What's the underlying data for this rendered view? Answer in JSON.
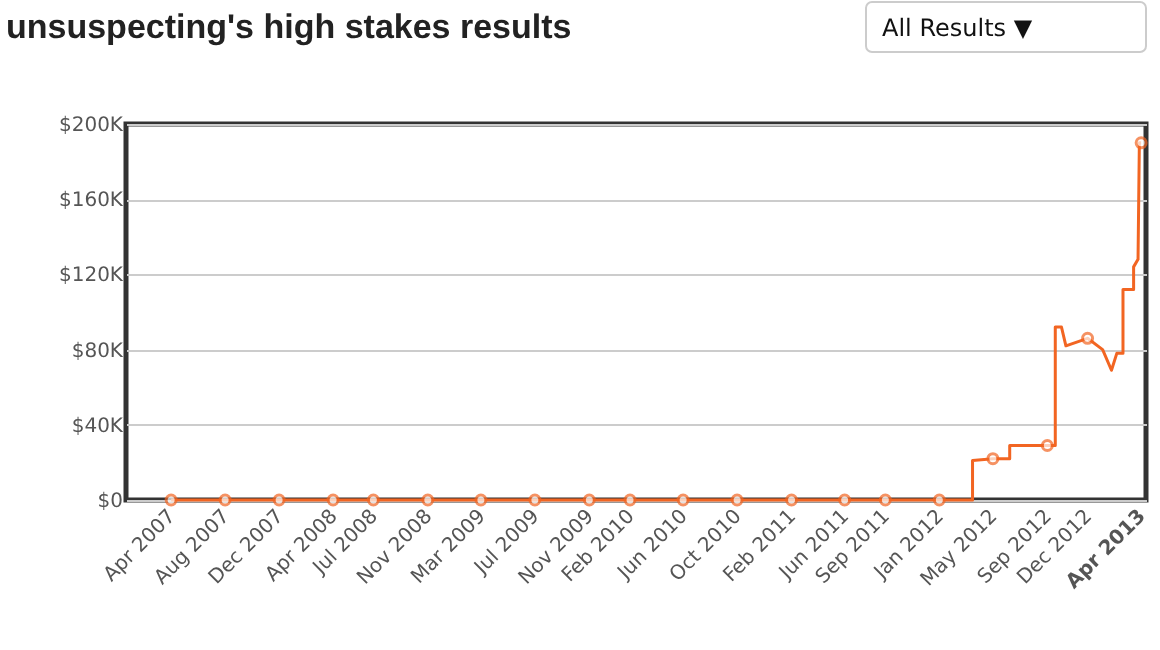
{
  "chart_data": {
    "type": "line",
    "title": "unsuspecting's high stakes results",
    "annotations": [
      "All Results ▼"
    ],
    "xlim": [
      "2006-12-20",
      "2013-04-12"
    ],
    "xticks": [
      {
        "value": "2007-04",
        "label": "Apr 2007"
      },
      {
        "value": "2007-08",
        "label": "Aug 2007"
      },
      {
        "value": "2007-12",
        "label": "Dec 2007"
      },
      {
        "value": "2008-04",
        "label": "Apr 2008"
      },
      {
        "value": "2008-07",
        "label": "Jul 2008"
      },
      {
        "value": "2008-11",
        "label": "Nov 2008"
      },
      {
        "value": "2009-03",
        "label": "Mar 2009"
      },
      {
        "value": "2009-07",
        "label": "Jul 2009"
      },
      {
        "value": "2009-11",
        "label": "Nov 2009"
      },
      {
        "value": "2010-02",
        "label": "Feb 2010"
      },
      {
        "value": "2010-06",
        "label": "Jun 2010"
      },
      {
        "value": "2010-10",
        "label": "Oct 2010"
      },
      {
        "value": "2011-02",
        "label": "Feb 2011"
      },
      {
        "value": "2011-06",
        "label": "Jun 2011"
      },
      {
        "value": "2011-09",
        "label": "Sep 2011"
      },
      {
        "value": "2012-01",
        "label": "Jan 2012"
      },
      {
        "value": "2012-05",
        "label": "May 2012"
      },
      {
        "value": "2012-09",
        "label": "Sep 2012"
      },
      {
        "value": "2012-12",
        "label": "Dec 2012"
      },
      {
        "value": "2013-04",
        "label": "Apr 2013"
      }
    ],
    "ylim": [
      0,
      200000
    ],
    "yticks": [
      {
        "value": 0,
        "label": "$0"
      },
      {
        "value": 40000,
        "label": "$40K"
      },
      {
        "value": 80000,
        "label": "$80K"
      },
      {
        "value": 120000,
        "label": "$120K"
      },
      {
        "value": 160000,
        "label": "$160K"
      },
      {
        "value": 200000,
        "label": "$200K"
      }
    ],
    "grid": "y",
    "line_style": "solid",
    "series": [
      {
        "color": "#f26522",
        "marker": "none",
        "x": [
          "2007-04",
          "2012-03-16",
          "2012-03-16",
          "2012-05",
          "2012-06-08",
          "2012-06-08",
          "2012-09",
          "2012-09-19",
          "2012-09-19",
          "2012-10-03",
          "2012-10-13",
          "2012-12",
          "2013-01-04",
          "2013-01-24",
          "2013-02-05",
          "2013-02-19",
          "2013-02-19",
          "2013-03-15",
          "2013-03-15",
          "2013-03-25",
          "2013-03-28",
          "2013-04"
        ],
        "values": [
          0,
          0,
          21000,
          22000,
          22000,
          29000,
          29000,
          29000,
          92000,
          92000,
          82000,
          86000,
          80000,
          69000,
          78000,
          78000,
          112000,
          112000,
          124000,
          128000,
          190000,
          190000
        ]
      },
      {
        "type": "scatter",
        "color": "#f26522",
        "marker": "circle",
        "x": [
          "2007-04",
          "2007-08",
          "2007-12",
          "2008-04",
          "2008-07",
          "2008-11",
          "2009-03",
          "2009-07",
          "2009-11",
          "2010-02",
          "2010-06",
          "2010-10",
          "2011-02",
          "2011-06",
          "2011-09",
          "2012-01",
          "2012-05",
          "2012-09",
          "2012-12",
          "2013-04"
        ],
        "values": [
          0,
          0,
          0,
          0,
          0,
          0,
          0,
          0,
          0,
          0,
          0,
          0,
          0,
          0,
          0,
          0,
          22000,
          29000,
          86000,
          190000
        ]
      }
    ]
  }
}
